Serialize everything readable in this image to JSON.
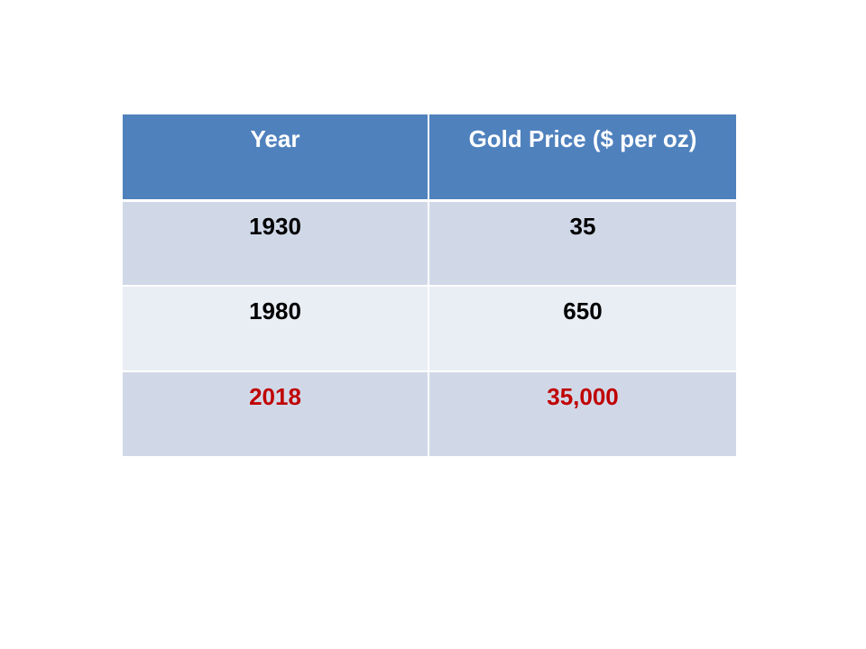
{
  "table": {
    "headers": [
      "Year",
      "Gold Price ($ per oz)"
    ],
    "rows": [
      {
        "year": "1930",
        "price": "35",
        "highlight": false
      },
      {
        "year": "1980",
        "price": "650",
        "highlight": false
      },
      {
        "year": "2018",
        "price": "35,000",
        "highlight": true
      }
    ]
  },
  "colors": {
    "header_fill": "#4f81bd",
    "row_fill_dark": "#d0d8e8",
    "row_fill_light": "#e9edf4",
    "highlight_text": "#c00000"
  }
}
